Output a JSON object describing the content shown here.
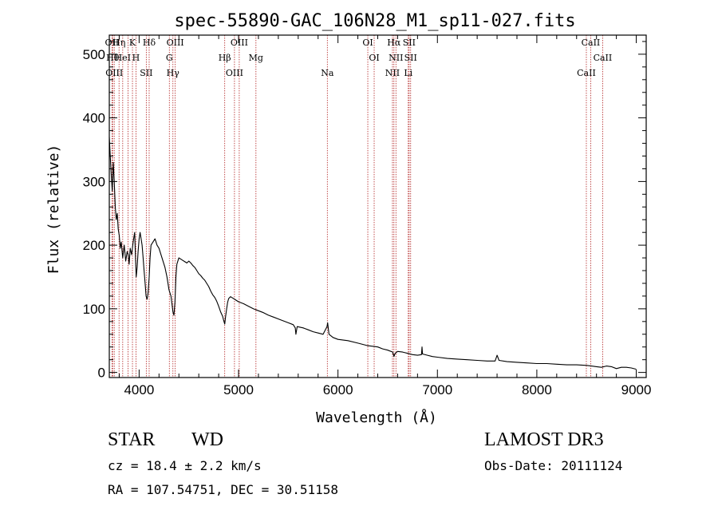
{
  "chart_data": {
    "type": "line",
    "title": "spec-55890-GAC_106N28_M1_sp11-027.fits",
    "xlabel": "Wavelength (Å)",
    "ylabel": "Flux (relative)",
    "xlim": [
      3700,
      9100
    ],
    "ylim": [
      -8,
      530
    ],
    "xticks": [
      4000,
      5000,
      6000,
      7000,
      8000,
      9000
    ],
    "xtick_labels": [
      "4000",
      "5000",
      "6000",
      "7000",
      "8000",
      "9000"
    ],
    "yticks": [
      0,
      100,
      200,
      300,
      400,
      500
    ],
    "ytick_labels": [
      "0",
      "100",
      "200",
      "300",
      "400",
      "500"
    ],
    "series": [
      {
        "name": "flux",
        "x": [
          3700,
          3710,
          3720,
          3730,
          3740,
          3750,
          3760,
          3770,
          3780,
          3790,
          3800,
          3810,
          3820,
          3835,
          3850,
          3865,
          3880,
          3890,
          3900,
          3910,
          3925,
          3940,
          3955,
          3965,
          3970,
          3980,
          3990,
          4000,
          4010,
          4020,
          4030,
          4040,
          4050,
          4060,
          4070,
          4080,
          4090,
          4101,
          4110,
          4120,
          4140,
          4160,
          4180,
          4200,
          4220,
          4240,
          4260,
          4280,
          4300,
          4320,
          4340,
          4350,
          4360,
          4370,
          4380,
          4400,
          4420,
          4440,
          4460,
          4480,
          4500,
          4520,
          4540,
          4560,
          4580,
          4600,
          4620,
          4640,
          4660,
          4680,
          4700,
          4720,
          4740,
          4760,
          4780,
          4800,
          4820,
          4840,
          4850,
          4861,
          4870,
          4880,
          4890,
          4900,
          4920,
          4940,
          4960,
          4980,
          5000,
          5050,
          5100,
          5150,
          5200,
          5250,
          5300,
          5350,
          5400,
          5450,
          5500,
          5550,
          5570,
          5577,
          5590,
          5650,
          5700,
          5750,
          5800,
          5850,
          5890,
          5896,
          5910,
          5950,
          6000,
          6100,
          6200,
          6300,
          6400,
          6450,
          6500,
          6550,
          6563,
          6575,
          6600,
          6650,
          6700,
          6750,
          6800,
          6840,
          6845,
          6850,
          6900,
          6950,
          7000,
          7100,
          7200,
          7300,
          7400,
          7500,
          7580,
          7600,
          7620,
          7700,
          7800,
          7900,
          8000,
          8100,
          8200,
          8300,
          8400,
          8500,
          8550,
          8600,
          8650,
          8700,
          8750,
          8800,
          8850,
          8900,
          8950,
          9000
        ],
        "y": [
          370,
          340,
          310,
          285,
          330,
          300,
          260,
          240,
          250,
          225,
          215,
          195,
          205,
          180,
          200,
          175,
          190,
          185,
          170,
          195,
          185,
          205,
          220,
          175,
          150,
          165,
          190,
          210,
          220,
          210,
          200,
          180,
          160,
          140,
          120,
          115,
          125,
          150,
          180,
          200,
          205,
          210,
          200,
          195,
          185,
          175,
          165,
          150,
          130,
          120,
          95,
          90,
          110,
          150,
          170,
          180,
          178,
          176,
          174,
          172,
          175,
          172,
          168,
          165,
          160,
          155,
          152,
          148,
          145,
          140,
          135,
          128,
          122,
          118,
          112,
          104,
          95,
          88,
          82,
          76,
          88,
          100,
          110,
          116,
          119,
          117,
          115,
          113,
          111,
          108,
          104,
          100,
          97,
          94,
          90,
          87,
          84,
          81,
          78,
          75,
          70,
          60,
          72,
          70,
          67,
          64,
          62,
          60,
          72,
          78,
          60,
          55,
          52,
          50,
          46,
          42,
          40,
          37,
          35,
          32,
          25,
          30,
          33,
          32,
          30,
          28,
          27,
          28,
          40,
          29,
          27,
          25,
          24,
          22,
          21,
          20,
          19,
          18,
          18,
          27,
          19,
          17,
          16,
          15,
          14,
          14,
          13,
          12,
          12,
          11,
          10,
          9,
          8,
          10,
          9,
          6,
          8,
          8,
          7,
          5
        ]
      }
    ],
    "lines": [
      {
        "x": 3727,
        "labels": [
          "OII"
        ]
      },
      {
        "x": 3734,
        "labels": [
          "Hθ"
        ]
      },
      {
        "x": 3750,
        "labels": [
          "OIII"
        ]
      },
      {
        "x": 3798,
        "labels": [
          "Hη"
        ]
      },
      {
        "x": 3835,
        "labels": [
          "HeI"
        ]
      },
      {
        "x": 3889,
        "labels": []
      },
      {
        "x": 3933,
        "labels": [
          "K"
        ]
      },
      {
        "x": 3968,
        "labels": [
          "H"
        ]
      },
      {
        "x": 4072,
        "labels": [
          "SII"
        ]
      },
      {
        "x": 4101,
        "labels": [
          "Hδ"
        ]
      },
      {
        "x": 4304,
        "labels": [
          "G"
        ]
      },
      {
        "x": 4340,
        "labels": [
          "Hγ"
        ]
      },
      {
        "x": 4363,
        "labels": [
          "OIII"
        ]
      },
      {
        "x": 4861,
        "labels": [
          "Hβ"
        ]
      },
      {
        "x": 4959,
        "labels": [
          "OIII"
        ]
      },
      {
        "x": 5007,
        "labels": [
          "OIII"
        ]
      },
      {
        "x": 5175,
        "labels": [
          "Mg"
        ]
      },
      {
        "x": 5893,
        "labels": [
          "Na"
        ]
      },
      {
        "x": 6300,
        "labels": [
          "OI"
        ]
      },
      {
        "x": 6364,
        "labels": [
          "OI"
        ]
      },
      {
        "x": 6548,
        "labels": [
          "NII"
        ]
      },
      {
        "x": 6563,
        "labels": [
          "Hα"
        ]
      },
      {
        "x": 6583,
        "labels": [
          "NII"
        ]
      },
      {
        "x": 6707,
        "labels": [
          "Li"
        ]
      },
      {
        "x": 6716,
        "labels": [
          "SII"
        ]
      },
      {
        "x": 6731,
        "labels": [
          "SII"
        ]
      },
      {
        "x": 8498,
        "labels": [
          "CaII"
        ]
      },
      {
        "x": 8542,
        "labels": [
          "CaII"
        ]
      },
      {
        "x": 8662,
        "labels": [
          "CaII"
        ]
      }
    ],
    "line_color": "#b22222"
  },
  "info": {
    "class_label": "STAR",
    "subclass_label": "WD",
    "survey": "LAMOST DR3",
    "redshift": "cz = 18.4 ± 2.2 km/s",
    "obs_date": "Obs-Date: 20111124",
    "coords": "RA = 107.54751, DEC =  30.51158"
  }
}
